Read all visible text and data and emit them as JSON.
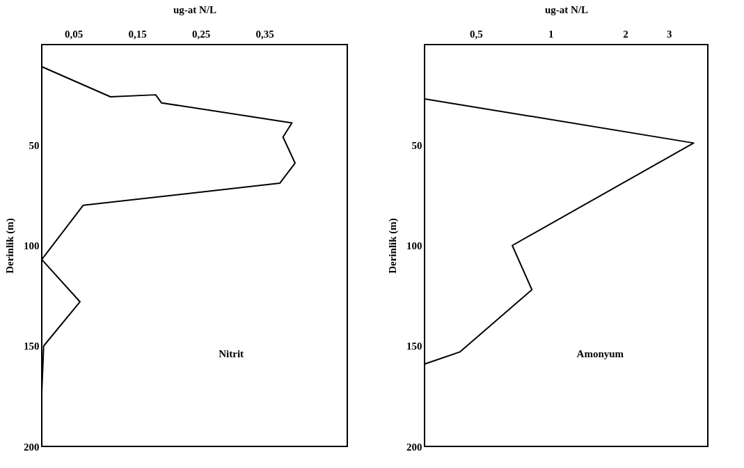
{
  "chart_data": [
    {
      "type": "line",
      "xlabel": "ug-at N/L",
      "ylabel": "Derinlik (m)",
      "xlim": [
        0,
        0.48
      ],
      "ylim": [
        200,
        0
      ],
      "xticks": [
        {
          "value": 0.05,
          "label": "0,05"
        },
        {
          "value": 0.15,
          "label": "0,15"
        },
        {
          "value": 0.25,
          "label": "0,25"
        },
        {
          "value": 0.35,
          "label": "0,35"
        }
      ],
      "yticks": [
        50,
        100,
        150,
        200
      ],
      "grid": false,
      "marker": "none",
      "series": [
        {
          "color": "#000000",
          "x": [
            0,
            0.108,
            0.179,
            0.188,
            0.393,
            0.379,
            0.398,
            0.374,
            0.065,
            0,
            0.06,
            0.003,
            0
          ],
          "values": [
            11,
            26,
            25,
            29,
            39,
            46,
            59,
            69,
            80,
            107,
            128,
            150,
            173
          ]
        }
      ],
      "line_style": "solid",
      "annotations": [
        "Nitrit"
      ]
    },
    {
      "type": "line",
      "xlabel": "ug-at N/L",
      "ylabel": "Derinlik (m)",
      "log": "x",
      "xlim": [
        0.31,
        4.3
      ],
      "ylim": [
        200,
        0
      ],
      "xticks": [
        {
          "value": 0.5,
          "label": "0,5"
        },
        1,
        2,
        3
      ],
      "yticks": [
        50,
        100,
        150,
        200
      ],
      "grid": false,
      "marker": "none",
      "series": [
        {
          "color": "#000000",
          "x": [
            0.31,
            3.77,
            0.7,
            0.84,
            0.43,
            0.31,
            0.31
          ],
          "values": [
            27,
            49,
            100,
            122,
            153,
            159,
            175
          ]
        }
      ],
      "line_style": "solid",
      "annotations": [
        "Amonyum"
      ]
    }
  ]
}
